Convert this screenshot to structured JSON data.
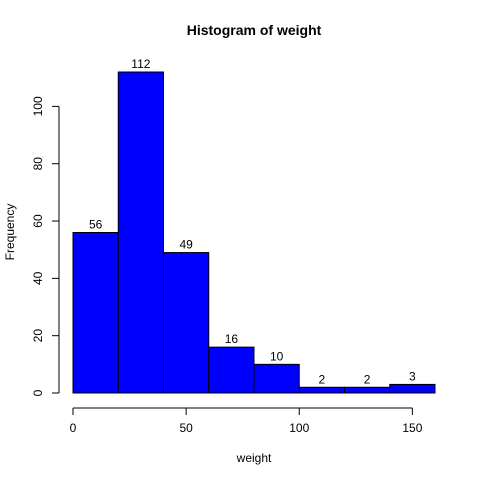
{
  "chart_data": {
    "type": "bar",
    "title": "Histogram of weight",
    "xlabel": "weight",
    "ylabel": "Frequency",
    "bins": [
      [
        0,
        20
      ],
      [
        20,
        40
      ],
      [
        40,
        60
      ],
      [
        60,
        80
      ],
      [
        80,
        100
      ],
      [
        100,
        120
      ],
      [
        120,
        140
      ],
      [
        140,
        160
      ]
    ],
    "values": [
      56,
      112,
      49,
      16,
      10,
      2,
      2,
      3
    ],
    "value_labels": [
      "56",
      "112",
      "49",
      "16",
      "10",
      "2",
      "2",
      "3"
    ],
    "xlim": [
      0,
      160
    ],
    "ylim": [
      0,
      112
    ],
    "x_ticks": [
      0,
      50,
      100,
      150
    ],
    "x_tick_labels": [
      "0",
      "50",
      "100",
      "150"
    ],
    "y_ticks": [
      0,
      20,
      40,
      60,
      80,
      100
    ],
    "y_tick_labels": [
      "0",
      "20",
      "40",
      "60",
      "80",
      "100"
    ],
    "bar_color": "#0000ff",
    "bar_border_color": "#000000",
    "grid": false,
    "legend": "none"
  }
}
